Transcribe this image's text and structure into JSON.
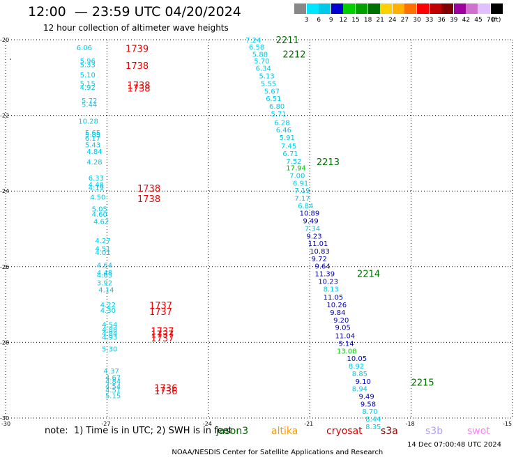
{
  "title": "12:00  — 23:59 UTC 04/20/2024",
  "subtitle": "12 hour collection of altimeter wave heights",
  "colorbar": {
    "labels": [
      "3",
      "6",
      "9",
      "12",
      "15",
      "18",
      "21",
      "24",
      "27",
      "30",
      "33",
      "36",
      "39",
      "42",
      "45",
      "70",
      "(ft)"
    ],
    "colors": [
      "#888888",
      "#00e5ff",
      "#00c8e8",
      "#0000d0",
      "#00d000",
      "#00a000",
      "#007000",
      "#ffd000",
      "#ffb000",
      "#ff7000",
      "#ff0000",
      "#c00000",
      "#800000",
      "#a000a0",
      "#d070d0",
      "#e0c0ff",
      "#000000"
    ]
  },
  "axes": {
    "y_ticks": [
      "-20",
      "-22",
      "-24",
      "-26",
      "-28",
      "-30"
    ],
    "x_ticks": [
      "-30",
      "-27",
      "-24",
      "-21",
      "-18",
      "-15"
    ]
  },
  "note": "note:  1) Time is in UTC; 2) SWH is in feet",
  "satellites": [
    {
      "name": "jason3",
      "color": "#006600"
    },
    {
      "name": "altika",
      "color": "#ff9900"
    },
    {
      "name": "cryosat",
      "color": "#dd0000"
    },
    {
      "name": "s3a",
      "color": "#880000"
    },
    {
      "name": "s3b",
      "color": "#b0a0ff"
    },
    {
      "name": "swot",
      "color": "#ff80ff"
    }
  ],
  "footer": {
    "credit": "NOAA/NESDIS Center for Satellite Applications and Research",
    "timestamp": "14 Dec 07:00:48 UTC 2024"
  },
  "map_data": {
    "left_track": [
      {
        "lon": -27.9,
        "lat": -20.2,
        "v": "6.06"
      },
      {
        "lon": -27.8,
        "lat": -20.55,
        "v": "5.96"
      },
      {
        "lon": -27.8,
        "lat": -20.65,
        "v": "5.33"
      },
      {
        "lon": -27.8,
        "lat": -20.92,
        "v": "5.10"
      },
      {
        "lon": -27.8,
        "lat": -21.15,
        "v": "5.15"
      },
      {
        "lon": -27.8,
        "lat": -21.25,
        "v": "4.92"
      },
      {
        "lon": -27.75,
        "lat": -21.6,
        "v": "5.72"
      },
      {
        "lon": -27.75,
        "lat": -21.7,
        "v": "5.44"
      },
      {
        "lon": -27.85,
        "lat": -22.15,
        "v": "10.28"
      },
      {
        "lon": -27.65,
        "lat": -22.45,
        "v": "5.65"
      },
      {
        "lon": -27.65,
        "lat": -22.5,
        "v": "5.85"
      },
      {
        "lon": -27.65,
        "lat": -22.6,
        "v": "6.17"
      },
      {
        "lon": -27.65,
        "lat": -22.77,
        "v": "5.43"
      },
      {
        "lon": -27.6,
        "lat": -22.95,
        "v": "4.84"
      },
      {
        "lon": -27.6,
        "lat": -23.22,
        "v": "4.28"
      },
      {
        "lon": -27.55,
        "lat": -23.65,
        "v": "6.33"
      },
      {
        "lon": -27.55,
        "lat": -23.82,
        "v": "4.48"
      },
      {
        "lon": -27.55,
        "lat": -23.9,
        "v": "4.19"
      },
      {
        "lon": -27.5,
        "lat": -24.15,
        "v": "4.50"
      },
      {
        "lon": -27.45,
        "lat": -24.47,
        "v": "5.05"
      },
      {
        "lon": -27.45,
        "lat": -24.6,
        "v": "4.60"
      },
      {
        "lon": -27.4,
        "lat": -24.8,
        "v": "4.62"
      },
      {
        "lon": -27.35,
        "lat": -25.3,
        "v": "4.27"
      },
      {
        "lon": -27.35,
        "lat": -25.52,
        "v": "4.51"
      },
      {
        "lon": -27.35,
        "lat": -25.62,
        "v": "4.01"
      },
      {
        "lon": -27.3,
        "lat": -25.95,
        "v": "4.64"
      },
      {
        "lon": -27.3,
        "lat": -26.15,
        "v": "4.48"
      },
      {
        "lon": -27.3,
        "lat": -26.22,
        "v": "4.63"
      },
      {
        "lon": -27.3,
        "lat": -26.42,
        "v": "3.92"
      },
      {
        "lon": -27.25,
        "lat": -26.6,
        "v": "4.14"
      },
      {
        "lon": -27.2,
        "lat": -27.0,
        "v": "4.22"
      },
      {
        "lon": -27.2,
        "lat": -27.15,
        "v": "4.30"
      },
      {
        "lon": -27.15,
        "lat": -27.52,
        "v": "4.54"
      },
      {
        "lon": -27.15,
        "lat": -27.65,
        "v": "4.88"
      },
      {
        "lon": -27.15,
        "lat": -27.75,
        "v": "4.84"
      },
      {
        "lon": -27.15,
        "lat": -27.85,
        "v": "4.93"
      },
      {
        "lon": -27.15,
        "lat": -28.17,
        "v": "5.30"
      },
      {
        "lon": -27.1,
        "lat": -28.75,
        "v": "4.37"
      },
      {
        "lon": -27.05,
        "lat": -28.92,
        "v": "4.67"
      },
      {
        "lon": -27.05,
        "lat": -29.02,
        "v": "4.84"
      },
      {
        "lon": -27.05,
        "lat": -29.15,
        "v": "4.54"
      },
      {
        "lon": -27.05,
        "lat": -29.25,
        "v": "4.51"
      },
      {
        "lon": -27.05,
        "lat": -29.4,
        "v": "5.15"
      }
    ],
    "left_times": [
      {
        "lon": -26.45,
        "lat": -20.23,
        "v": "1739"
      },
      {
        "lon": -26.45,
        "lat": -20.68,
        "v": "1738"
      },
      {
        "lon": -26.4,
        "lat": -21.2,
        "v": "1738"
      },
      {
        "lon": -26.4,
        "lat": -21.28,
        "v": "1738"
      },
      {
        "lon": -26.1,
        "lat": -23.92,
        "v": "1738"
      },
      {
        "lon": -26.1,
        "lat": -24.2,
        "v": "1738"
      },
      {
        "lon": -25.75,
        "lat": -27.02,
        "v": "1737"
      },
      {
        "lon": -25.75,
        "lat": -27.18,
        "v": "1737"
      },
      {
        "lon": -25.7,
        "lat": -27.7,
        "v": "1737"
      },
      {
        "lon": -25.7,
        "lat": -27.78,
        "v": "1737"
      },
      {
        "lon": -25.7,
        "lat": -27.88,
        "v": "1737"
      },
      {
        "lon": -25.6,
        "lat": -29.2,
        "v": "1736"
      },
      {
        "lon": -25.6,
        "lat": -29.28,
        "v": "1736"
      }
    ],
    "right_track": [
      {
        "lon": -22.9,
        "lat": -20.0,
        "v": "7.24",
        "c": "#00c8e8"
      },
      {
        "lon": -22.8,
        "lat": -20.18,
        "v": "6.58",
        "c": "#00c8e8"
      },
      {
        "lon": -22.7,
        "lat": -20.38,
        "v": "5.88",
        "c": "#00c8e8"
      },
      {
        "lon": -22.65,
        "lat": -20.55,
        "v": "5.70",
        "c": "#00c8e8"
      },
      {
        "lon": -22.6,
        "lat": -20.75,
        "v": "6.34",
        "c": "#00c8e8"
      },
      {
        "lon": -22.5,
        "lat": -20.95,
        "v": "5.13",
        "c": "#00c8e8"
      },
      {
        "lon": -22.45,
        "lat": -21.15,
        "v": "5.55",
        "c": "#00c8e8"
      },
      {
        "lon": -22.35,
        "lat": -21.35,
        "v": "5.67",
        "c": "#00c8e8"
      },
      {
        "lon": -22.3,
        "lat": -21.55,
        "v": "6.51",
        "c": "#00c8e8"
      },
      {
        "lon": -22.2,
        "lat": -21.75,
        "v": "6.80",
        "c": "#00c8e8"
      },
      {
        "lon": -22.15,
        "lat": -21.95,
        "v": "5.71",
        "c": "#00c8e8"
      },
      {
        "lon": -22.05,
        "lat": -22.18,
        "v": "6.28",
        "c": "#00c8e8"
      },
      {
        "lon": -22.0,
        "lat": -22.38,
        "v": "6.46",
        "c": "#00c8e8"
      },
      {
        "lon": -21.9,
        "lat": -22.58,
        "v": "5.91",
        "c": "#00c8e8"
      },
      {
        "lon": -21.85,
        "lat": -22.8,
        "v": "7.45",
        "c": "#00c8e8"
      },
      {
        "lon": -21.8,
        "lat": -23.0,
        "v": "6.71",
        "c": "#00c8e8"
      },
      {
        "lon": -21.7,
        "lat": -23.2,
        "v": "7.52",
        "c": "#00c8e8"
      },
      {
        "lon": -21.7,
        "lat": -23.38,
        "v": "17.94",
        "c": "#00c000"
      },
      {
        "lon": -21.6,
        "lat": -23.58,
        "v": "7.00",
        "c": "#00c8e8"
      },
      {
        "lon": -21.5,
        "lat": -23.78,
        "v": "6.91",
        "c": "#00c8e8"
      },
      {
        "lon": -21.45,
        "lat": -23.98,
        "v": "7.19",
        "c": "#00c8e8"
      },
      {
        "lon": -21.45,
        "lat": -24.18,
        "v": "7.17",
        "c": "#00c8e8"
      },
      {
        "lon": -21.35,
        "lat": -24.38,
        "v": "6.84",
        "c": "#00c8e8"
      },
      {
        "lon": -21.3,
        "lat": -24.58,
        "v": "10.89",
        "c": "#0000c0"
      },
      {
        "lon": -21.2,
        "lat": -24.78,
        "v": "9.49",
        "c": "#0000c0"
      },
      {
        "lon": -21.15,
        "lat": -24.98,
        "v": "7.34",
        "c": "#00c8e8"
      },
      {
        "lon": -21.1,
        "lat": -25.18,
        "v": "9.23",
        "c": "#0000c0"
      },
      {
        "lon": -21.05,
        "lat": -25.38,
        "v": "11.01",
        "c": "#0000c0"
      },
      {
        "lon": -21.0,
        "lat": -25.58,
        "v": "10.83",
        "c": "#0000c0"
      },
      {
        "lon": -20.95,
        "lat": -25.78,
        "v": "9.72",
        "c": "#0000c0"
      },
      {
        "lon": -20.85,
        "lat": -25.98,
        "v": "9.64",
        "c": "#0000c0"
      },
      {
        "lon": -20.85,
        "lat": -26.18,
        "v": "11.39",
        "c": "#0000c0"
      },
      {
        "lon": -20.75,
        "lat": -26.38,
        "v": "10.23",
        "c": "#0000c0"
      },
      {
        "lon": -20.6,
        "lat": -26.58,
        "v": "8.13",
        "c": "#00c8e8"
      },
      {
        "lon": -20.6,
        "lat": -26.8,
        "v": "11.05",
        "c": "#0000c0"
      },
      {
        "lon": -20.5,
        "lat": -27.0,
        "v": "10.26",
        "c": "#0000c0"
      },
      {
        "lon": -20.4,
        "lat": -27.2,
        "v": "9.84",
        "c": "#0000c0"
      },
      {
        "lon": -20.3,
        "lat": -27.4,
        "v": "9.20",
        "c": "#0000c0"
      },
      {
        "lon": -20.25,
        "lat": -27.6,
        "v": "9.05",
        "c": "#0000c0"
      },
      {
        "lon": -20.25,
        "lat": -27.82,
        "v": "11.04",
        "c": "#0000c0"
      },
      {
        "lon": -20.15,
        "lat": -28.02,
        "v": "9.14",
        "c": "#0000c0"
      },
      {
        "lon": -20.2,
        "lat": -28.22,
        "v": "13.08",
        "c": "#00d000"
      },
      {
        "lon": -19.9,
        "lat": -28.42,
        "v": "10.05",
        "c": "#0000c0"
      },
      {
        "lon": -19.85,
        "lat": -28.62,
        "v": "8.92",
        "c": "#00c8e8"
      },
      {
        "lon": -19.75,
        "lat": -28.82,
        "v": "8.85",
        "c": "#00c8e8"
      },
      {
        "lon": -19.65,
        "lat": -29.02,
        "v": "9.10",
        "c": "#0000c0"
      },
      {
        "lon": -19.75,
        "lat": -29.22,
        "v": "8.94",
        "c": "#00c8e8"
      },
      {
        "lon": -19.55,
        "lat": -29.42,
        "v": "9.49",
        "c": "#0000c0"
      },
      {
        "lon": -19.5,
        "lat": -29.62,
        "v": "9.58",
        "c": "#0000c0"
      },
      {
        "lon": -19.45,
        "lat": -29.82,
        "v": "8.70",
        "c": "#00c8e8"
      },
      {
        "lon": -19.35,
        "lat": -30.02,
        "v": "8.44",
        "c": "#00c8e8"
      },
      {
        "lon": -19.35,
        "lat": -30.22,
        "v": "8.35",
        "c": "#00c8e8"
      }
    ],
    "right_times": [
      {
        "lon": -22.0,
        "lat": -20.0,
        "v": "2211"
      },
      {
        "lon": -21.8,
        "lat": -20.38,
        "v": "2212"
      },
      {
        "lon": -20.8,
        "lat": -23.22,
        "v": "2213"
      },
      {
        "lon": -19.6,
        "lat": -26.18,
        "v": "2214"
      },
      {
        "lon": -18.0,
        "lat": -29.05,
        "v": "2215"
      }
    ]
  }
}
